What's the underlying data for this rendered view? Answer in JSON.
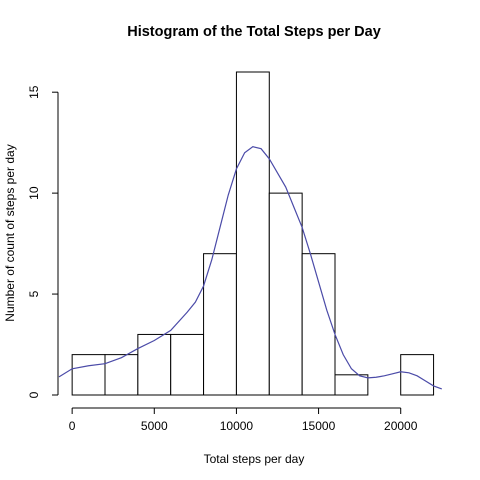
{
  "chart_data": {
    "type": "bar",
    "title": "Histogram of the Total Steps per Day",
    "xlabel": "Total steps per day",
    "ylabel": "Number of count of steps per day",
    "bin_edges": [
      0,
      2000,
      4000,
      6000,
      8000,
      10000,
      12000,
      14000,
      16000,
      18000,
      20000,
      22000
    ],
    "counts": [
      2,
      2,
      3,
      3,
      7,
      16,
      10,
      7,
      1,
      0,
      2
    ],
    "xlim": [
      -800,
      23000
    ],
    "ylim": [
      0,
      16
    ],
    "x_ticks": [
      0,
      5000,
      10000,
      15000,
      20000
    ],
    "x_tick_labels": [
      "0",
      "5000",
      "10000",
      "15000",
      "20000"
    ],
    "y_ticks": [
      0,
      5,
      10,
      15
    ],
    "y_tick_labels": [
      "0",
      "5",
      "10",
      "15"
    ],
    "bar_fill": "#ffffff",
    "bar_outline": "#000000",
    "grid": false,
    "density_curve": {
      "color": "#4B4BA8",
      "x": [
        -800,
        0,
        1000,
        2000,
        3000,
        4000,
        5000,
        6000,
        7000,
        7500,
        8000,
        8500,
        9000,
        9500,
        10000,
        10500,
        11000,
        11500,
        12000,
        12500,
        13000,
        13500,
        14000,
        14500,
        15000,
        15500,
        16000,
        16500,
        17000,
        17500,
        18000,
        18500,
        19000,
        19500,
        20000,
        20500,
        21000,
        21500,
        22000,
        22500
      ],
      "y": [
        0.9,
        1.3,
        1.45,
        1.55,
        1.85,
        2.3,
        2.7,
        3.2,
        4.1,
        4.6,
        5.4,
        6.7,
        8.3,
        9.9,
        11.2,
        12.0,
        12.3,
        12.2,
        11.7,
        11.0,
        10.3,
        9.3,
        8.3,
        7.0,
        5.6,
        4.2,
        3.0,
        2.0,
        1.3,
        0.95,
        0.85,
        0.88,
        0.95,
        1.05,
        1.15,
        1.1,
        0.95,
        0.7,
        0.45,
        0.3
      ]
    }
  }
}
